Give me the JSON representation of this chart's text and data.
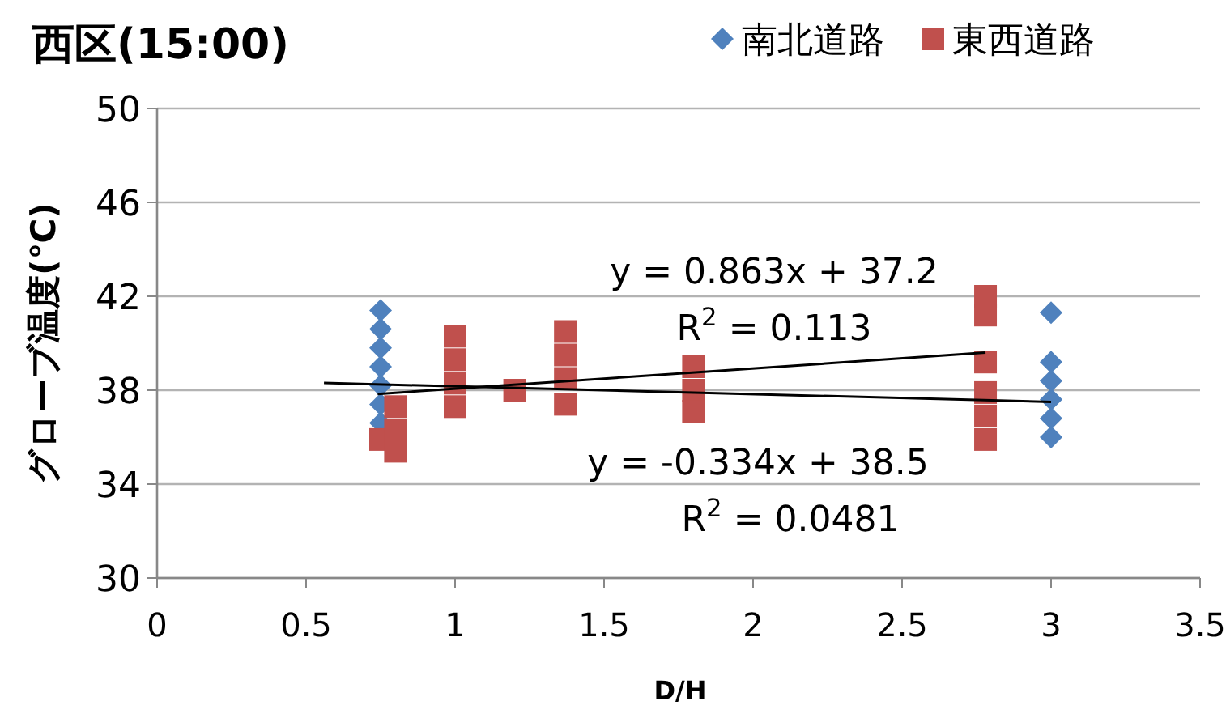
{
  "chart_data": {
    "type": "scatter",
    "title": "西区**(15:00)**",
    "xlabel": "D/H",
    "ylabel": "グローブ温度(℃)",
    "xlim": [
      0,
      3.5
    ],
    "xticks": [
      0,
      0.5,
      1,
      1.5,
      2,
      2.5,
      3,
      3.5
    ],
    "ylim": [
      30,
      50
    ],
    "yticks": [
      30,
      34,
      38,
      42,
      46,
      50
    ],
    "grid": "y",
    "legend": "top right",
    "series": [
      {
        "name": "南北道路",
        "color": "#4f81bd",
        "marker": "diamond",
        "x": [
          0.75,
          0.75,
          0.75,
          0.75,
          0.75,
          0.75,
          0.75,
          3,
          3,
          3,
          3,
          3,
          3
        ],
        "values": [
          41.4,
          40.6,
          39.8,
          39.0,
          38.2,
          37.4,
          36.6,
          41.3,
          39.2,
          38.4,
          37.6,
          36.8,
          36.0
        ]
      },
      {
        "name": "東西道路",
        "color": "#c0504d",
        "marker": "square",
        "x": [
          0.75,
          0.8,
          0.8,
          0.8,
          1,
          1,
          1,
          1,
          1.2,
          1.37,
          1.37,
          1.37,
          1.37,
          1.8,
          1.8,
          1.8,
          2.78,
          2.78,
          2.78,
          2.78,
          2.78,
          2.78
        ],
        "values": [
          35.9,
          37.3,
          36.3,
          35.4,
          40.3,
          39.3,
          38.3,
          37.3,
          38.0,
          40.5,
          39.5,
          38.5,
          37.4,
          39.0,
          38.0,
          37.1,
          42.0,
          41.2,
          39.2,
          37.9,
          36.9,
          35.9
        ]
      },
      {
        "type": "line",
        "color": "#000000",
        "marker": "none",
        "x": [
          0.74,
          2.78
        ],
        "values": [
          37.84,
          39.6
        ]
      },
      {
        "type": "line",
        "color": "#000000",
        "marker": "none",
        "x": [
          0.56,
          3
        ],
        "values": [
          38.31,
          37.5
        ]
      }
    ],
    "annotations": [
      "y = 0.863x + 37.2",
      "R$^{2}$ = 0.113",
      "y = -0.334x + 38.5",
      "R$^{2}$ = 0.0481"
    ]
  }
}
